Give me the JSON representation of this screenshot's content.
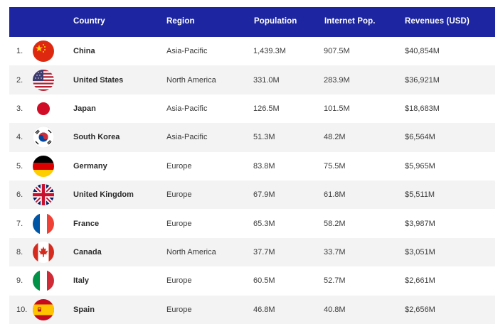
{
  "table": {
    "headers": {
      "country": "Country",
      "region": "Region",
      "population": "Population",
      "internet_pop": "Internet Pop.",
      "revenues": "Revenues (USD)"
    },
    "rows": [
      {
        "rank": "1.",
        "flag": "china-flag-icon",
        "country": "China",
        "region": "Asia-Pacific",
        "population": "1,439.3M",
        "internet_pop": "907.5M",
        "revenues": "$40,854M"
      },
      {
        "rank": "2.",
        "flag": "united-states-flag-icon",
        "country": "United States",
        "region": "North America",
        "population": "331.0M",
        "internet_pop": "283.9M",
        "revenues": "$36,921M"
      },
      {
        "rank": "3.",
        "flag": "japan-flag-icon",
        "country": "Japan",
        "region": "Asia-Pacific",
        "population": "126.5M",
        "internet_pop": "101.5M",
        "revenues": "$18,683M"
      },
      {
        "rank": "4.",
        "flag": "south-korea-flag-icon",
        "country": "South Korea",
        "region": "Asia-Pacific",
        "population": "51.3M",
        "internet_pop": "48.2M",
        "revenues": "$6,564M"
      },
      {
        "rank": "5.",
        "flag": "germany-flag-icon",
        "country": "Germany",
        "region": "Europe",
        "population": "83.8M",
        "internet_pop": "75.5M",
        "revenues": "$5,965M"
      },
      {
        "rank": "6.",
        "flag": "united-kingdom-flag-icon",
        "country": "United Kingdom",
        "region": "Europe",
        "population": "67.9M",
        "internet_pop": "61.8M",
        "revenues": "$5,511M"
      },
      {
        "rank": "7.",
        "flag": "france-flag-icon",
        "country": "France",
        "region": "Europe",
        "population": "65.3M",
        "internet_pop": "58.2M",
        "revenues": "$3,987M"
      },
      {
        "rank": "8.",
        "flag": "canada-flag-icon",
        "country": "Canada",
        "region": "North America",
        "population": "37.7M",
        "internet_pop": "33.7M",
        "revenues": "$3,051M"
      },
      {
        "rank": "9.",
        "flag": "italy-flag-icon",
        "country": "Italy",
        "region": "Europe",
        "population": "60.5M",
        "internet_pop": "52.7M",
        "revenues": "$2,661M"
      },
      {
        "rank": "10.",
        "flag": "spain-flag-icon",
        "country": "Spain",
        "region": "Europe",
        "population": "46.8M",
        "internet_pop": "40.8M",
        "revenues": "$2,656M"
      }
    ]
  },
  "colors": {
    "header_bg": "#1d26a0",
    "header_text": "#ffffff",
    "row_alt_bg": "#f3f3f3"
  }
}
